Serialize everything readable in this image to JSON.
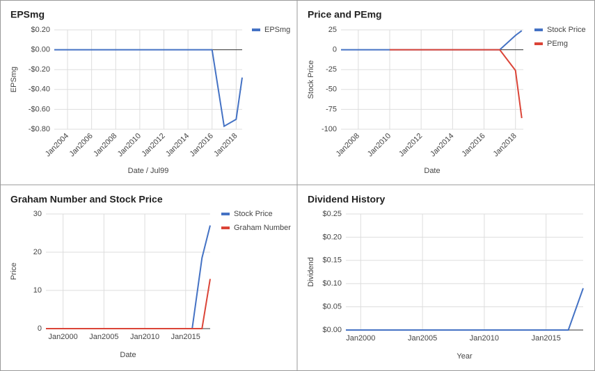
{
  "chart_data": [
    {
      "type": "line",
      "title": "EPSmg",
      "xlabel": "Date / Jul99",
      "ylabel": "EPSmg",
      "xlim": [
        2002.9,
        2018.5
      ],
      "xticks": [
        {
          "value": 2004,
          "label": "Jan2004"
        },
        {
          "value": 2006,
          "label": "Jan2006"
        },
        {
          "value": 2008,
          "label": "Jan2008"
        },
        {
          "value": 2010,
          "label": "Jan2010"
        },
        {
          "value": 2012,
          "label": "Jan2012"
        },
        {
          "value": 2014,
          "label": "Jan2014"
        },
        {
          "value": 2016,
          "label": "Jan2016"
        },
        {
          "value": 2018,
          "label": "Jan2018"
        }
      ],
      "ylim": [
        -0.8,
        0.2
      ],
      "yticks": [
        {
          "value": 0.2,
          "label": "$0.20"
        },
        {
          "value": 0,
          "label": "$0.00"
        },
        {
          "value": -0.2,
          "label": "-$0.20"
        },
        {
          "value": -0.4,
          "label": "-$0.40"
        },
        {
          "value": -0.6,
          "label": "-$0.60"
        },
        {
          "value": -0.8,
          "label": "-$0.80"
        }
      ],
      "grid": true,
      "series": [
        {
          "name": "EPSmg",
          "color": "#4472c4",
          "x": [
            2002.9,
            2016,
            2017,
            2018,
            2018.5
          ],
          "values": [
            0,
            0,
            -0.77,
            -0.7,
            -0.28
          ]
        }
      ]
    },
    {
      "type": "line",
      "title": "Price and PEmg",
      "xlabel": "Date",
      "ylabel": "Stock Price",
      "xlim": [
        2006.9,
        2018.5
      ],
      "xticks": [
        {
          "value": 2008,
          "label": "Jan2008"
        },
        {
          "value": 2010,
          "label": "Jan2010"
        },
        {
          "value": 2012,
          "label": "Jan2012"
        },
        {
          "value": 2014,
          "label": "Jan2014"
        },
        {
          "value": 2016,
          "label": "Jan2016"
        },
        {
          "value": 2018,
          "label": "Jan2018"
        }
      ],
      "ylim": [
        -100,
        25
      ],
      "yticks": [
        25,
        0,
        -25,
        -50,
        -75,
        -100
      ],
      "grid": true,
      "series": [
        {
          "name": "Stock Price",
          "color": "#4472c4",
          "x": [
            2006.9,
            2017,
            2018,
            2018.4
          ],
          "values": [
            0,
            0,
            18,
            24
          ]
        },
        {
          "name": "PEmg",
          "color": "#db4437",
          "x": [
            2010,
            2017,
            2018,
            2018.4
          ],
          "values": [
            0,
            0,
            -26,
            -86
          ]
        }
      ]
    },
    {
      "type": "line",
      "title": "Graham Number and Stock Price",
      "xlabel": "Date",
      "ylabel": "Price",
      "xlim": [
        1997.9,
        2018
      ],
      "xticks": [
        {
          "value": 2000,
          "label": "Jan2000"
        },
        {
          "value": 2005,
          "label": "Jan2005"
        },
        {
          "value": 2010,
          "label": "Jan2010"
        },
        {
          "value": 2015,
          "label": "Jan2015"
        }
      ],
      "ylim": [
        0,
        30
      ],
      "yticks": [
        0,
        10,
        20,
        30
      ],
      "grid": true,
      "series": [
        {
          "name": "Stock Price",
          "color": "#4472c4",
          "x": [
            1997.9,
            2015.8,
            2017,
            2018
          ],
          "values": [
            0,
            0,
            18.5,
            27
          ]
        },
        {
          "name": "Graham Number",
          "color": "#db4437",
          "x": [
            1997.9,
            2017,
            2018
          ],
          "values": [
            0,
            0,
            13
          ]
        }
      ]
    },
    {
      "type": "line",
      "title": "Dividend History",
      "xlabel": "Year",
      "ylabel": "Dividend",
      "xlim": [
        1998.8,
        2018
      ],
      "xticks": [
        {
          "value": 2000,
          "label": "Jan2000"
        },
        {
          "value": 2005,
          "label": "Jan2005"
        },
        {
          "value": 2010,
          "label": "Jan2010"
        },
        {
          "value": 2015,
          "label": "Jan2015"
        }
      ],
      "ylim": [
        0,
        0.25
      ],
      "yticks": [
        {
          "value": 0,
          "label": "$0.00"
        },
        {
          "value": 0.05,
          "label": "$0.05"
        },
        {
          "value": 0.1,
          "label": "$0.10"
        },
        {
          "value": 0.15,
          "label": "$0.15"
        },
        {
          "value": 0.2,
          "label": "$0.20"
        },
        {
          "value": 0.25,
          "label": "$0.25"
        }
      ],
      "grid": true,
      "series": [
        {
          "color": "#4472c4",
          "x": [
            1998.8,
            2016.8,
            2018
          ],
          "values": [
            0,
            0,
            0.09
          ]
        }
      ]
    }
  ]
}
